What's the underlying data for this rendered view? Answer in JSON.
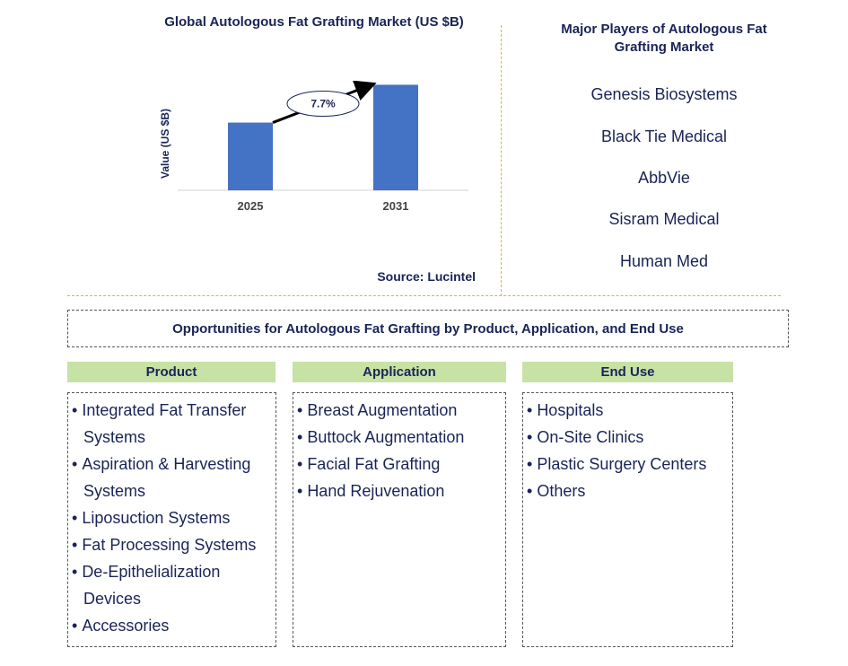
{
  "chart_data": {
    "type": "bar",
    "title": "Global Autologous Fat Grafting Market (US $B)",
    "ylabel": "Value (US $B)",
    "xlabel": "",
    "categories": [
      "2025",
      "2031"
    ],
    "values": [
      0.68,
      1.06
    ],
    "ylim": [
      0,
      1.1
    ],
    "annotation": "7.7%",
    "bar_color": "#4472c4",
    "source": "Source: Lucintel"
  },
  "players": {
    "title": "Major Players of Autologous Fat Grafting Market",
    "items": [
      "Genesis Biosystems",
      "Black Tie Medical",
      "AbbVie",
      "Sisram Medical",
      "Human Med"
    ]
  },
  "opportunities": {
    "title": "Opportunities for Autologous Fat Grafting by Product, Application, and End Use",
    "columns": [
      {
        "header": "Product",
        "items": [
          "Integrated Fat Transfer Systems",
          "Aspiration & Harvesting Systems",
          "Liposuction Systems",
          "Fat Processing Systems",
          "De-Epithelialization Devices",
          "Accessories"
        ]
      },
      {
        "header": "Application",
        "items": [
          "Breast Augmentation",
          "Buttock Augmentation",
          "Facial Fat Grafting",
          "Hand Rejuvenation"
        ]
      },
      {
        "header": "End Use",
        "items": [
          "Hospitals",
          "On-Site Clinics",
          "Plastic Surgery Centers",
          "Others"
        ]
      }
    ]
  }
}
